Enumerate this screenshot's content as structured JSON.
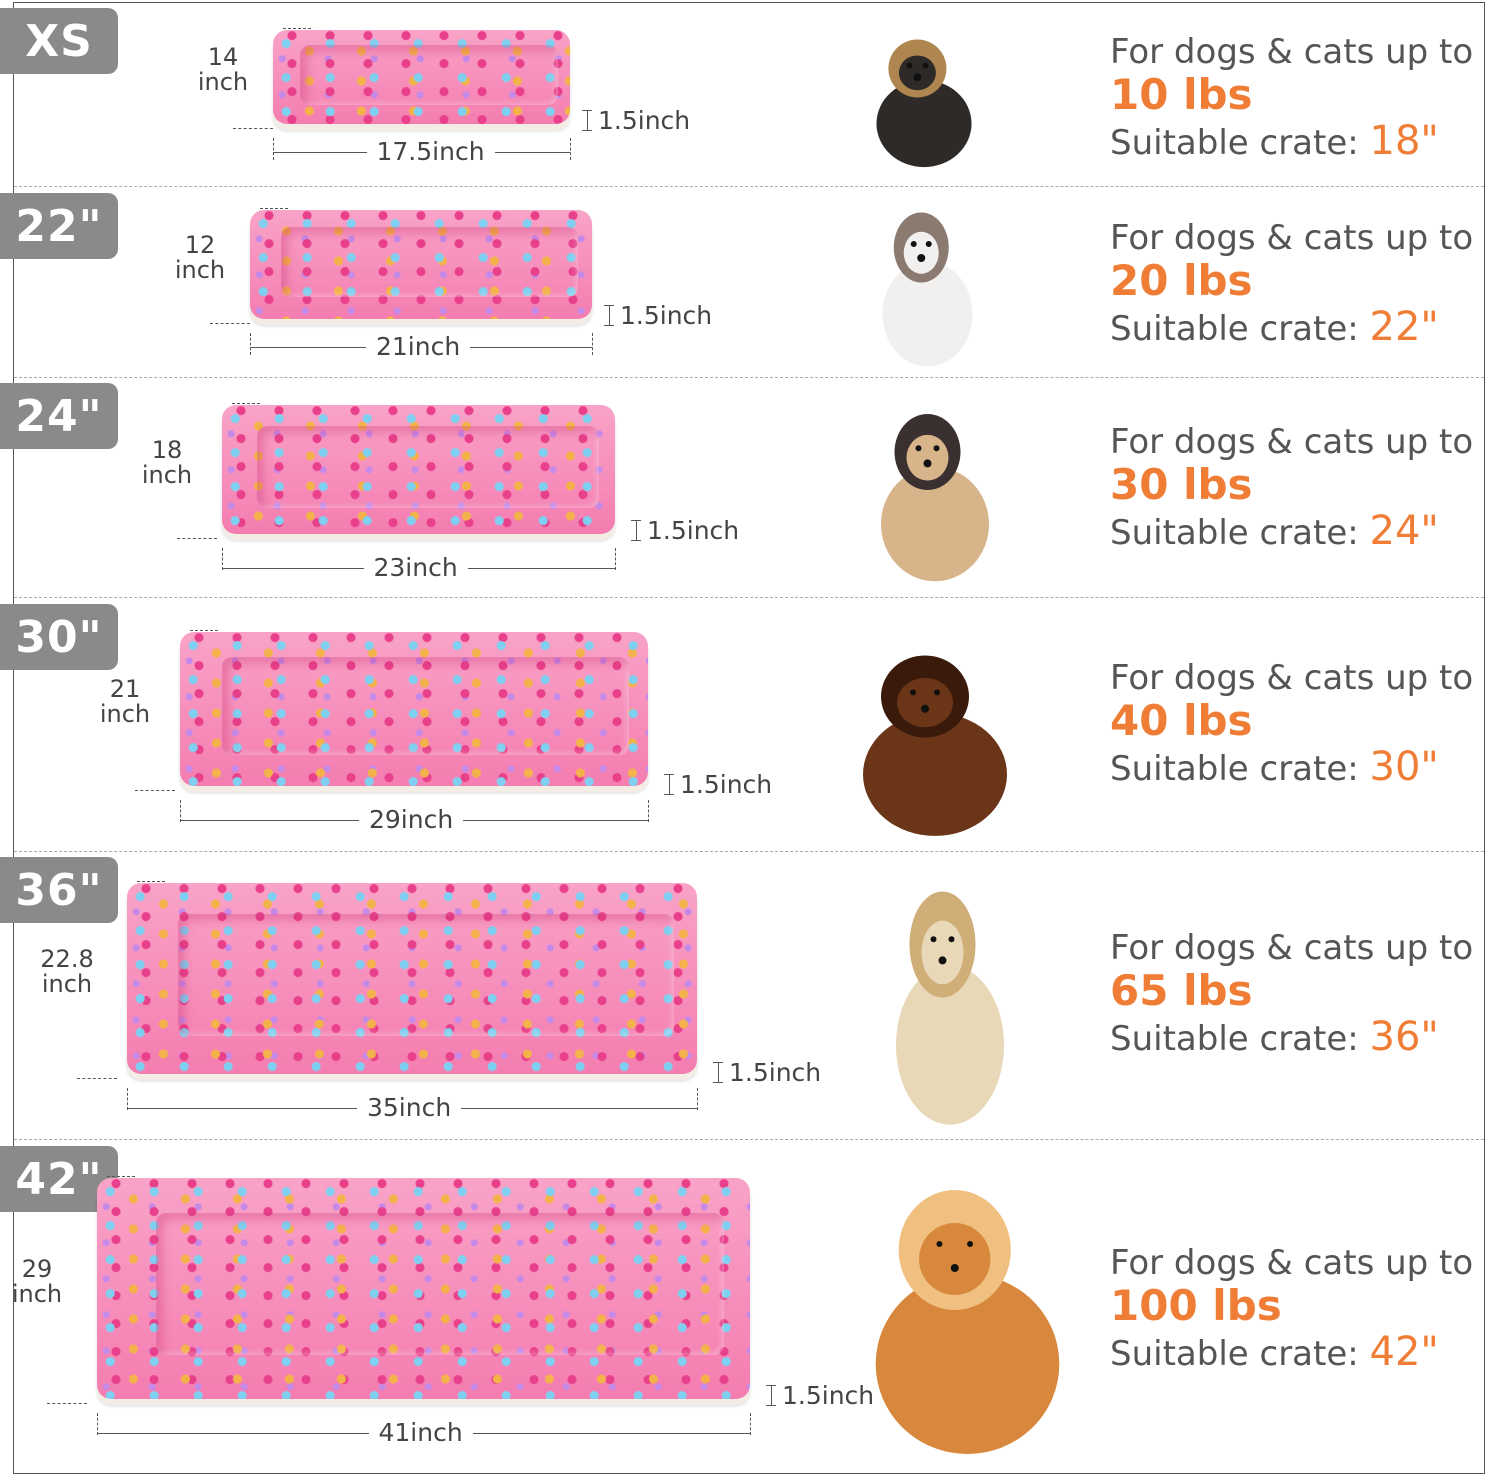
{
  "labels": {
    "weight_prefix": "For dogs & cats up to",
    "crate_prefix": "Suitable crate:",
    "thickness_unit_label": "1.5inch",
    "depth_unit": "inch"
  },
  "colors": {
    "badge": "#8a8a8a",
    "accent": "#f07d35",
    "text": "#555555",
    "mat_pink": "#f47db0"
  },
  "sizes": [
    {
      "badge": "XS",
      "width": "17.5inch",
      "depth": "14",
      "thickness": "1.5inch",
      "weight": "10 lbs",
      "crate": "18\"",
      "animal": "yorkie-puppy"
    },
    {
      "badge": "22\"",
      "width": "21inch",
      "depth": "12",
      "thickness": "1.5inch",
      "weight": "20 lbs",
      "crate": "22\"",
      "animal": "ragdoll-cat"
    },
    {
      "badge": "24\"",
      "width": "23inch",
      "depth": "18",
      "thickness": "1.5inch",
      "weight": "30 lbs",
      "crate": "24\"",
      "animal": "french-bulldog"
    },
    {
      "badge": "30\"",
      "width": "29inch",
      "depth": "21",
      "thickness": "1.5inch",
      "weight": "40 lbs",
      "crate": "30\"",
      "animal": "dachshund"
    },
    {
      "badge": "36\"",
      "width": "35inch",
      "depth": "22.8",
      "thickness": "1.5inch",
      "weight": "65 lbs",
      "crate": "36\"",
      "animal": "labrador"
    },
    {
      "badge": "42\"",
      "width": "41inch",
      "depth": "29",
      "thickness": "1.5inch",
      "weight": "100 lbs",
      "crate": "42\"",
      "animal": "golden-retriever"
    }
  ]
}
